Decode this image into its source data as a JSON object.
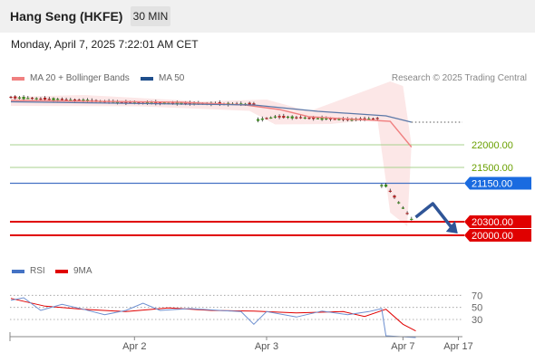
{
  "header": {
    "title": "Hang Seng (HKFE)",
    "interval": "30 MIN"
  },
  "datetime": "Monday, April 7, 2025 7:22:01 AM CET",
  "legend": {
    "ma20": {
      "label": "MA 20 + Bollinger Bands",
      "color": "#f08080"
    },
    "ma50": {
      "label": "MA 50",
      "color": "#1f4e8c"
    }
  },
  "copyright": "Research © 2025 Trading Central",
  "rsi_legend": {
    "rsi": {
      "label": "RSI",
      "color": "#4472c4"
    },
    "ma9": {
      "label": "9MA",
      "color": "#e00000"
    }
  },
  "chart_data": [
    {
      "type": "candlestick",
      "x_ticks": [
        "Apr 2",
        "Apr 3",
        "Apr 7",
        "Apr 17"
      ],
      "ylim": [
        19600,
        23300
      ],
      "levels": [
        {
          "value": 22000,
          "label": "22000.00",
          "style": "support-green"
        },
        {
          "value": 21500,
          "label": "21500.00",
          "style": "support-green"
        },
        {
          "value": 21150,
          "label": "21150.00",
          "style": "pivot-blue"
        },
        {
          "value": 20300,
          "label": "20300.00",
          "style": "target-red"
        },
        {
          "value": 20000,
          "label": "20000.00",
          "style": "target-red"
        }
      ],
      "segments": [
        {
          "from": 0,
          "to": 30,
          "start": 23050,
          "end": 22930
        },
        {
          "from": 30,
          "to": 58,
          "start": 22930,
          "end": 22900
        },
        {
          "from": 58,
          "to": 63,
          "start": 22550,
          "end": 22620
        },
        {
          "from": 63,
          "to": 80,
          "start": 22620,
          "end": 22560
        },
        {
          "from": 80,
          "to": 87,
          "start": 22560,
          "end": 22580
        },
        {
          "from": 87,
          "to": 88,
          "start": 21100,
          "end": 21100
        },
        {
          "from": 88,
          "to": 95,
          "start": 21100,
          "end": 20360
        }
      ],
      "ma50": [
        [
          0,
          22950
        ],
        [
          57,
          22880
        ],
        [
          72,
          22740
        ],
        [
          88,
          22640
        ],
        [
          94,
          22500
        ]
      ],
      "bollinger_upper": [
        [
          0,
          23060
        ],
        [
          17,
          23100
        ],
        [
          45,
          22960
        ],
        [
          60,
          23000
        ],
        [
          70,
          22740
        ],
        [
          89,
          23400
        ],
        [
          92,
          23300
        ],
        [
          94,
          22000
        ]
      ],
      "bollinger_lower": [
        [
          0,
          22860
        ],
        [
          30,
          22850
        ],
        [
          56,
          22750
        ],
        [
          62,
          22450
        ],
        [
          75,
          22460
        ],
        [
          86,
          22560
        ],
        [
          89,
          20500
        ],
        [
          93,
          20200
        ]
      ],
      "ma20": [
        [
          0,
          22980
        ],
        [
          40,
          22940
        ],
        [
          55,
          22880
        ],
        [
          63,
          22780
        ],
        [
          70,
          22620
        ],
        [
          89,
          22520
        ],
        [
          94,
          21950
        ]
      ],
      "projection": [
        [
          95,
          20400
        ],
        [
          99,
          20700
        ],
        [
          104,
          20100
        ]
      ]
    },
    {
      "type": "line",
      "name": "RSI",
      "ylim": [
        0,
        90
      ],
      "y_ticks": [
        "70",
        "50",
        "30"
      ],
      "rsi": [
        [
          0,
          62
        ],
        [
          3,
          66
        ],
        [
          7,
          45
        ],
        [
          12,
          55
        ],
        [
          17,
          47
        ],
        [
          22,
          38
        ],
        [
          27,
          45
        ],
        [
          31,
          57
        ],
        [
          35,
          45
        ],
        [
          42,
          48
        ],
        [
          49,
          45
        ],
        [
          54,
          43
        ],
        [
          57,
          22
        ],
        [
          60,
          43
        ],
        [
          67,
          34
        ],
        [
          73,
          44
        ],
        [
          79,
          38
        ],
        [
          84,
          43
        ],
        [
          87,
          48
        ],
        [
          88,
          3
        ],
        [
          95,
          0
        ]
      ],
      "ma9": [
        [
          0,
          65
        ],
        [
          8,
          52
        ],
        [
          17,
          47
        ],
        [
          27,
          43
        ],
        [
          37,
          49
        ],
        [
          47,
          45
        ],
        [
          57,
          44
        ],
        [
          67,
          41
        ],
        [
          78,
          43
        ],
        [
          83,
          35
        ],
        [
          88,
          47
        ],
        [
          92,
          22
        ],
        [
          95,
          11
        ]
      ]
    }
  ]
}
